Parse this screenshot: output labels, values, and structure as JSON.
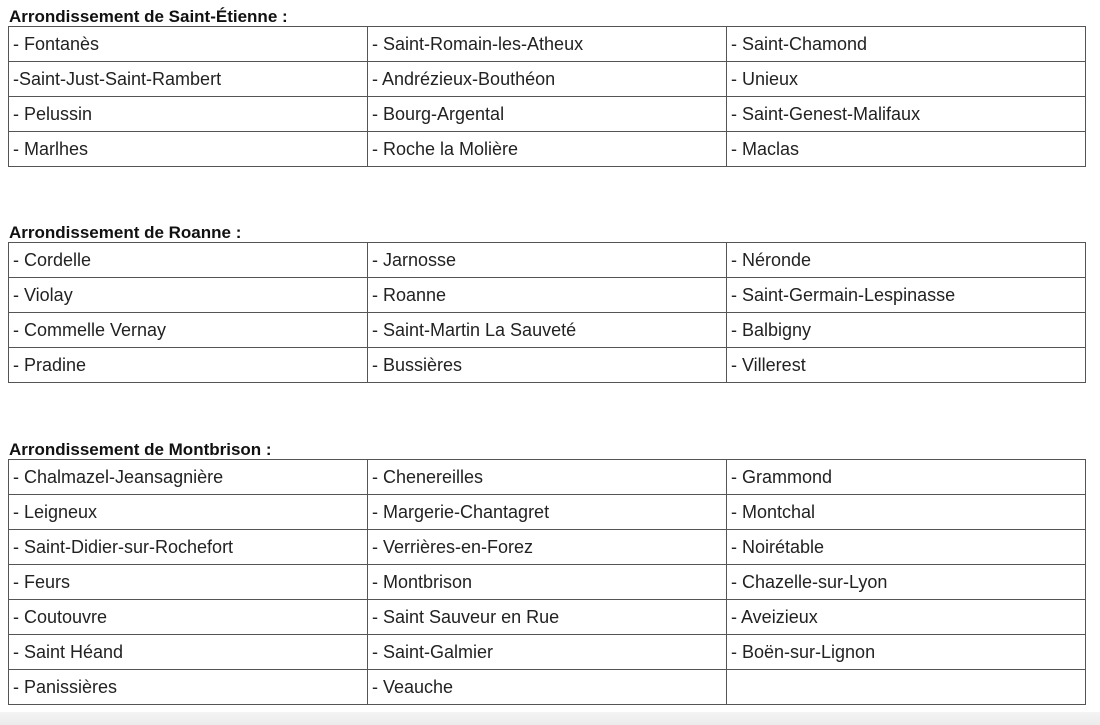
{
  "sections": [
    {
      "title": "Arrondissement de Saint-Étienne :",
      "rows": [
        [
          "- Fontanès",
          "- Saint-Romain-les-Atheux",
          "- Saint-Chamond"
        ],
        [
          "-Saint-Just-Saint-Rambert",
          "- Andrézieux-Bouthéon",
          "- Unieux"
        ],
        [
          "- Pelussin",
          "- Bourg-Argental",
          "- Saint-Genest-Malifaux"
        ],
        [
          "- Marlhes",
          "- Roche la Molière",
          "- Maclas"
        ]
      ]
    },
    {
      "title": "Arrondissement de Roanne :",
      "rows": [
        [
          "- Cordelle",
          "- Jarnosse",
          "- Néronde"
        ],
        [
          "- Violay",
          "- Roanne",
          "- Saint-Germain-Lespinasse"
        ],
        [
          "- Commelle Vernay",
          "- Saint-Martin La Sauveté",
          "- Balbigny"
        ],
        [
          "- Pradine",
          "- Bussières",
          "- Villerest"
        ]
      ]
    },
    {
      "title": "Arrondissement de Montbrison :",
      "rows": [
        [
          "- Chalmazel-Jeansagnière",
          "- Chenereilles",
          "- Grammond"
        ],
        [
          "- Leigneux",
          "- Margerie-Chantagret",
          "- Montchal"
        ],
        [
          "- Saint-Didier-sur-Rochefort",
          "- Verrières-en-Forez",
          "- Noirétable"
        ],
        [
          "- Feurs",
          "- Montbrison",
          "- Chazelle-sur-Lyon"
        ],
        [
          "- Coutouvre",
          "- Saint Sauveur en Rue",
          "- Aveizieux"
        ],
        [
          "- Saint Héand",
          "- Saint-Galmier",
          "- Boën-sur-Lignon"
        ],
        [
          "- Panissières",
          "- Veauche",
          ""
        ]
      ]
    }
  ]
}
